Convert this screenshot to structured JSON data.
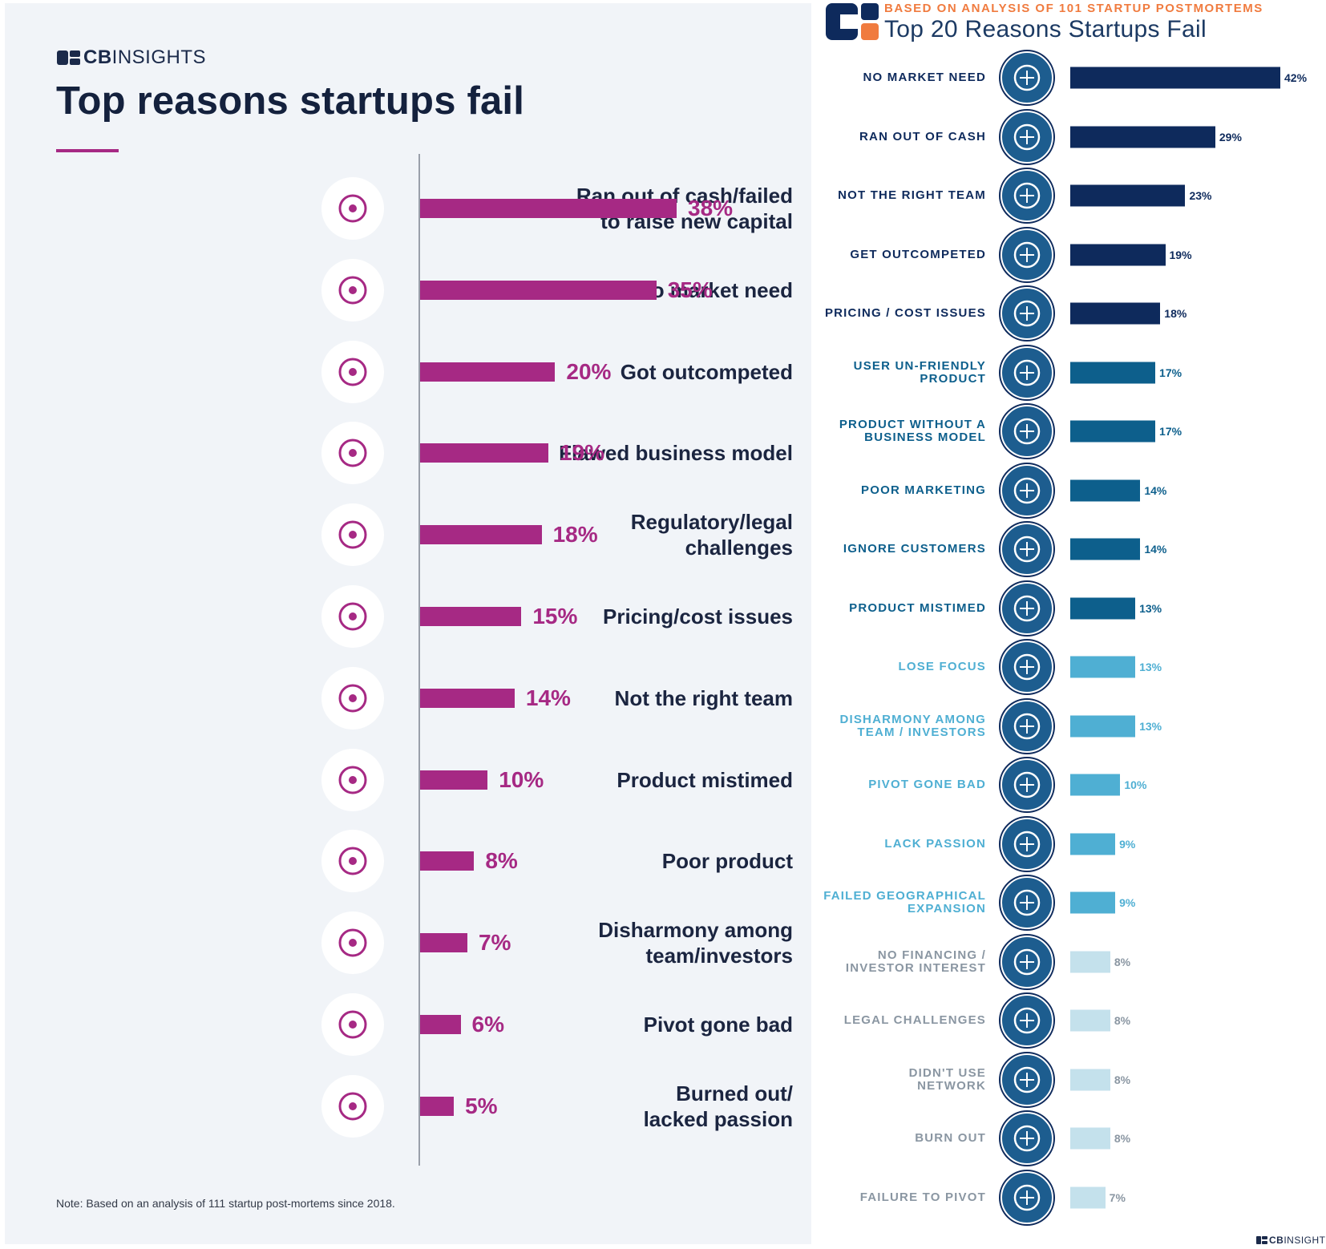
{
  "colors": {
    "magenta": "#a62984",
    "navy": "#0e2a5c",
    "mid_blue": "#0d5f8c",
    "light_blue": "#4fafd3",
    "pale_blue": "#c4e1ec",
    "orange": "#f07b3f"
  },
  "brand": {
    "bold": "CB",
    "light": "INSIGHTS"
  },
  "left_panel": {
    "title": "Top reasons startups fail",
    "note": "Note: Based on an analysis of 111 startup post-mortems since 2018."
  },
  "right_panel": {
    "subtitle": "BASED ON ANALYSIS OF 101 STARTUP POSTMORTEMS",
    "title": "Top 20 Reasons Startups Fail"
  },
  "chart_data": [
    {
      "type": "bar",
      "orientation": "horizontal",
      "title": "Top reasons startups fail",
      "value_suffix": "%",
      "categories": [
        "Ran out of cash/failed to raise new capital",
        "No market need",
        "Got outcompeted",
        "Flawed business model",
        "Regulatory/legal challenges",
        "Pricing/cost issues",
        "Not the right team",
        "Product mistimed",
        "Poor product",
        "Disharmony among team/investors",
        "Pivot gone bad",
        "Burned out/ lacked passion"
      ],
      "label_lines": [
        [
          "Ran out of cash/failed",
          "to raise new capital"
        ],
        [
          "No market need"
        ],
        [
          "Got outcompeted"
        ],
        [
          "Flawed business model"
        ],
        [
          "Regulatory/legal",
          "challenges"
        ],
        [
          "Pricing/cost issues"
        ],
        [
          "Not the right team"
        ],
        [
          "Product mistimed"
        ],
        [
          "Poor product"
        ],
        [
          "Disharmony among",
          "team/investors"
        ],
        [
          "Pivot gone bad"
        ],
        [
          "Burned out/",
          "lacked passion"
        ]
      ],
      "values": [
        38,
        35,
        20,
        19,
        18,
        15,
        14,
        10,
        8,
        7,
        6,
        5
      ],
      "value_labels": [
        "38%",
        "35%",
        "20%",
        "19%",
        "18%",
        "15%",
        "14%",
        "10%",
        "8%",
        "7%",
        "6%",
        "5%"
      ],
      "icons": [
        "piggy-bank-hammer-icon",
        "puzzle-piece-icon",
        "sneaker-icon",
        "business-model-icon",
        "gavel-icon",
        "coins-icon",
        "team-icon",
        "alarm-clock-icon",
        "star-rating-icon",
        "frustrated-person-icon",
        "broken-pencil-icon",
        "sleep-zzz-icon"
      ],
      "xlim": [
        0,
        38
      ]
    },
    {
      "type": "bar",
      "orientation": "horizontal",
      "title": "Top 20 Reasons Startups Fail",
      "subtitle": "BASED ON ANALYSIS OF 101 STARTUP POSTMORTEMS",
      "value_suffix": "%",
      "categories": [
        "NO MARKET NEED",
        "RAN OUT OF CASH",
        "NOT THE RIGHT TEAM",
        "GET OUTCOMPETED",
        "PRICING / COST ISSUES",
        "USER UN-FRIENDLY PRODUCT",
        "PRODUCT WITHOUT A BUSINESS MODEL",
        "POOR MARKETING",
        "IGNORE CUSTOMERS",
        "PRODUCT MISTIMED",
        "LOSE FOCUS",
        "DISHARMONY AMONG TEAM / INVESTORS",
        "PIVOT GONE BAD",
        "LACK PASSION",
        "FAILED GEOGRAPHICAL EXPANSION",
        "NO FINANCING / INVESTOR INTEREST",
        "LEGAL CHALLENGES",
        "DIDN'T USE NETWORK",
        "BURN OUT",
        "FAILURE TO PIVOT"
      ],
      "label_lines": [
        [
          "NO MARKET NEED"
        ],
        [
          "RAN OUT OF CASH"
        ],
        [
          "NOT THE RIGHT TEAM"
        ],
        [
          "GET OUTCOMPETED"
        ],
        [
          "PRICING / COST ISSUES"
        ],
        [
          "USER UN-FRIENDLY",
          "PRODUCT"
        ],
        [
          "PRODUCT WITHOUT A",
          "BUSINESS MODEL"
        ],
        [
          "POOR MARKETING"
        ],
        [
          "IGNORE CUSTOMERS"
        ],
        [
          "PRODUCT MISTIMED"
        ],
        [
          "LOSE FOCUS"
        ],
        [
          "DISHARMONY AMONG",
          "TEAM / INVESTORS"
        ],
        [
          "PIVOT GONE BAD"
        ],
        [
          "LACK PASSION"
        ],
        [
          "FAILED GEOGRAPHICAL",
          "EXPANSION"
        ],
        [
          "NO FINANCING /",
          "INVESTOR INTEREST"
        ],
        [
          "LEGAL CHALLENGES"
        ],
        [
          "DIDN'T USE",
          "NETWORK"
        ],
        [
          "BURN OUT"
        ],
        [
          "FAILURE TO PIVOT"
        ]
      ],
      "values": [
        42,
        29,
        23,
        19,
        18,
        17,
        17,
        14,
        14,
        13,
        13,
        13,
        10,
        9,
        9,
        8,
        8,
        8,
        8,
        7
      ],
      "value_labels": [
        "42%",
        "29%",
        "23%",
        "19%",
        "18%",
        "17%",
        "17%",
        "14%",
        "14%",
        "13%",
        "13%",
        "13%",
        "10%",
        "9%",
        "9%",
        "8%",
        "8%",
        "8%",
        "8%",
        "7%"
      ],
      "tiers": [
        "navy",
        "navy",
        "navy",
        "navy",
        "navy",
        "mid_blue",
        "mid_blue",
        "mid_blue",
        "mid_blue",
        "mid_blue",
        "light_blue",
        "light_blue",
        "light_blue",
        "light_blue",
        "light_blue",
        "pale_blue",
        "pale_blue",
        "pale_blue",
        "pale_blue",
        "pale_blue"
      ],
      "icons": [
        "puzzle-globe-icon",
        "empty-pocket-icon",
        "team-globe-icon",
        "podium-icon",
        "dollar-coins-icon",
        "thumbs-down-icon",
        "cart-wheel-icon",
        "megaphone-icon",
        "monkey-icon",
        "snowflake-icon",
        "scattered-arrows-icon",
        "broken-paddles-icon",
        "broken-pencil-icon",
        "zzz-icon",
        "map-pin-icon",
        "handshake-icon",
        "hands-cuffed-icon",
        "contact-cards-icon",
        "fuel-pump-icon",
        "sinking-ship-icon"
      ],
      "xlim": [
        0,
        42
      ]
    }
  ]
}
